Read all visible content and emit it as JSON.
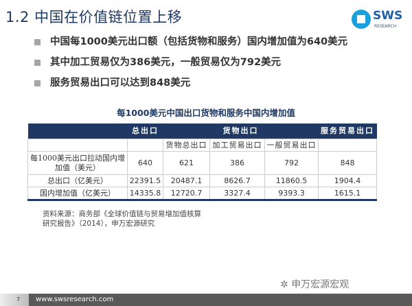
{
  "title": "1.2 中国在价值链位置上移",
  "logo": {
    "text": "SWS",
    "subtext": "RESEARCH"
  },
  "bullets": [
    "中国每1000美元出口额（包括货物和服务）国内增加值为640美元",
    "其中加工贸易仅为386美元，一般贸易仅为792美元",
    "服务贸易出口可以达到848美元"
  ],
  "table": {
    "title": "每1000美元中国出口货物和服务中国内增加值",
    "header": [
      "",
      "总出口",
      "货物出口",
      "服务贸易出口"
    ],
    "subheader": [
      "",
      "",
      "货物总出口",
      "加工贸易出口",
      "一般贸易出口",
      ""
    ],
    "rows": [
      [
        "每1000美元出口拉动国内增加值（美元）",
        "640",
        "621",
        "386",
        "792",
        "848"
      ],
      [
        "总出口（亿美元）",
        "22391.5",
        "20487.1",
        "8626.7",
        "11860.5",
        "1904.4"
      ],
      [
        "国内增加值（亿美元）",
        "14335.8",
        "12720.7",
        "3327.4",
        "9393.3",
        "1615.1"
      ]
    ]
  },
  "source": [
    "资料来源：商务部《全球价值链与贸易增加值核算",
    "研究报告》（2014），申万宏源研究"
  ],
  "watermark": "申万宏源宏观",
  "footer": {
    "page": "7",
    "url": "www.swsresearch.com"
  }
}
